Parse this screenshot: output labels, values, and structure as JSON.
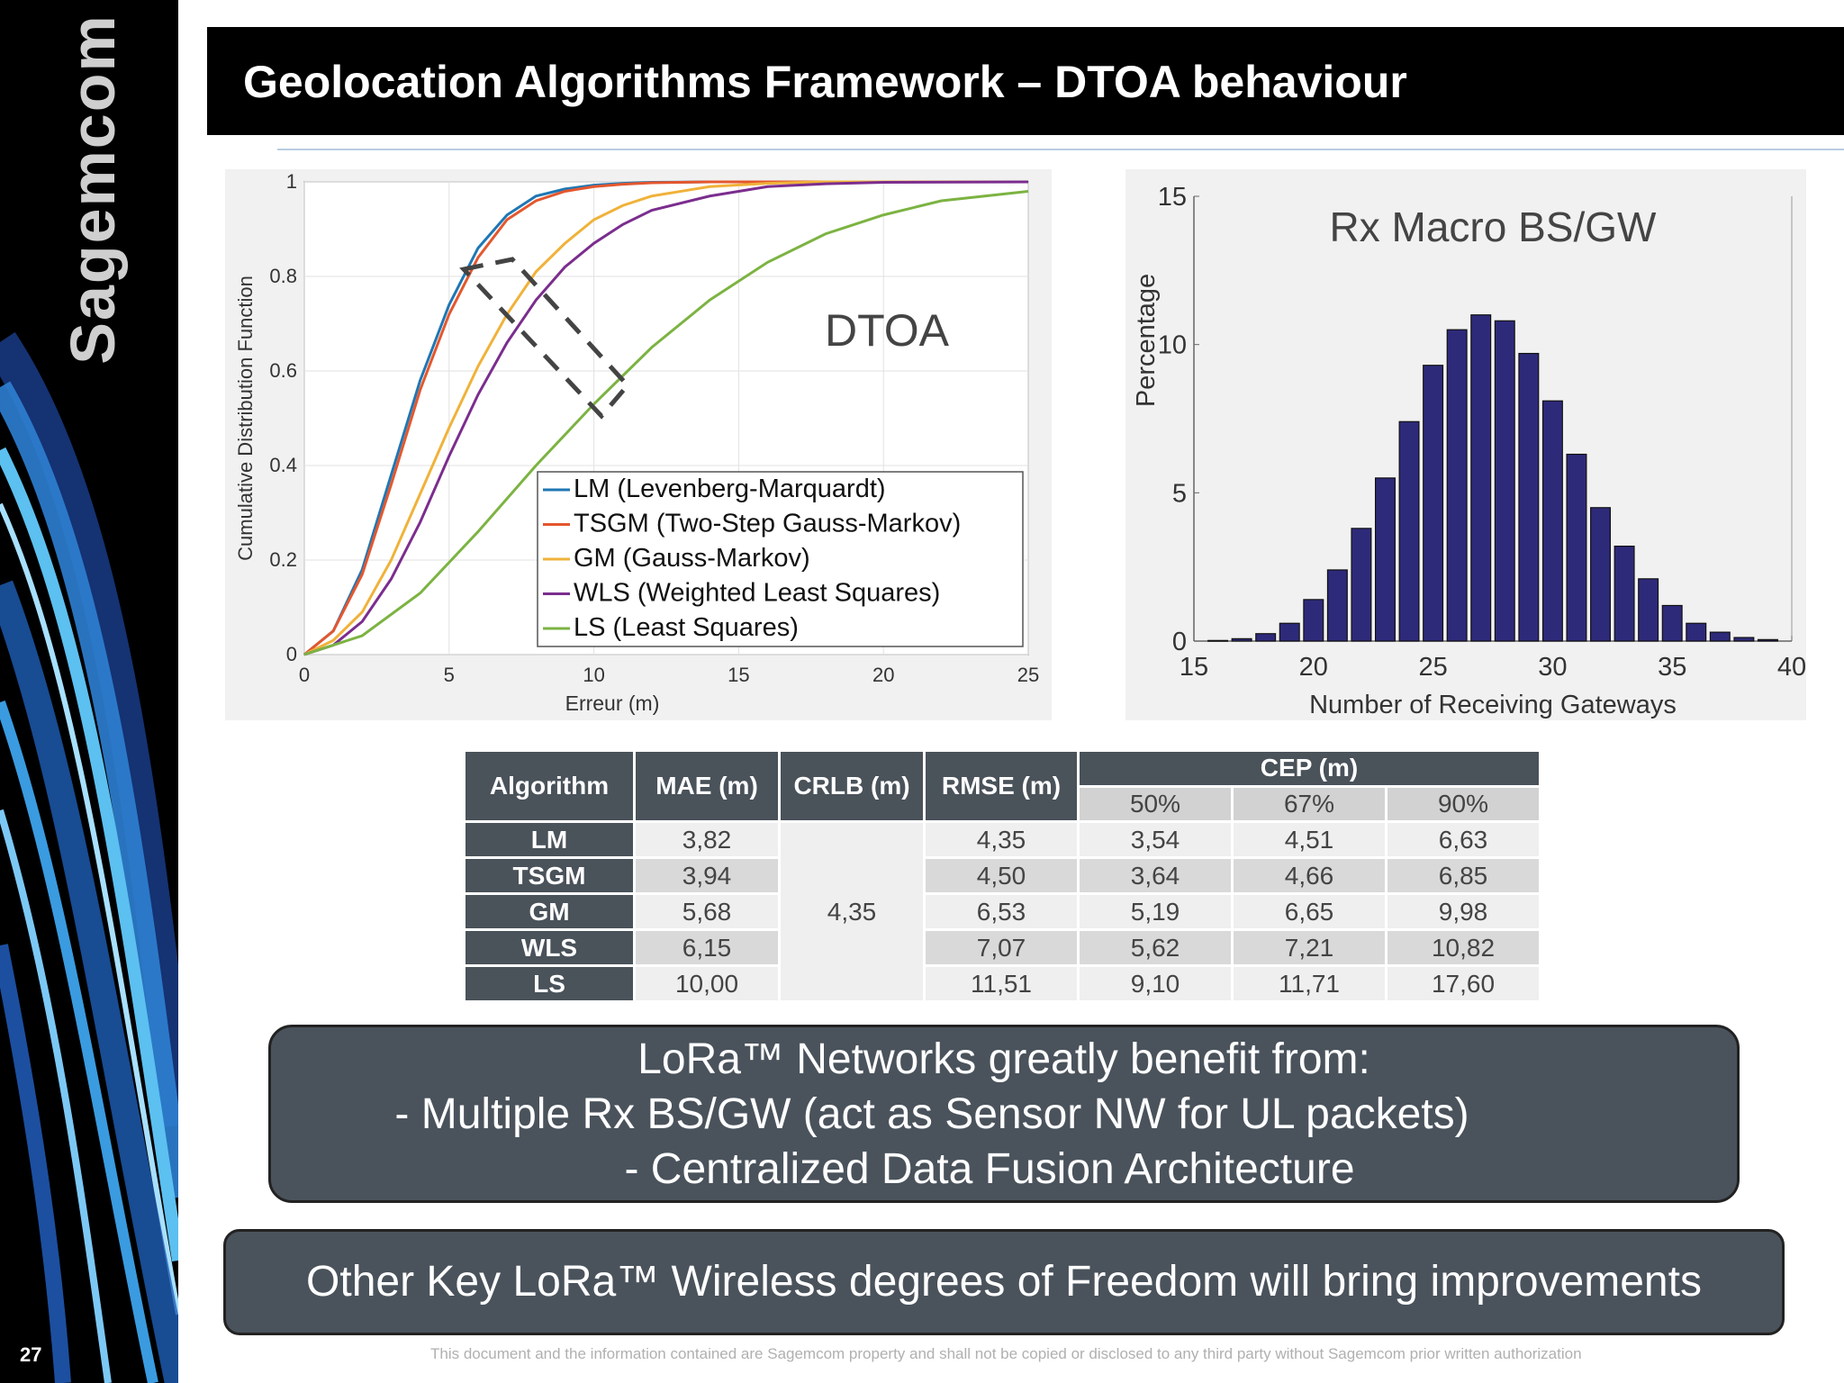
{
  "sidebar": {
    "logo": "Sagemcom",
    "page_number": "27"
  },
  "header": {
    "title": "Geolocation Algorithms Framework – DTOA behaviour"
  },
  "colors": {
    "LM": "#1f77b4",
    "TSGM": "#e4572e",
    "GM": "#f0b23a",
    "WLS": "#7b2d8e",
    "LS": "#7cb342",
    "bar": "#2e2a7a"
  },
  "chart_data": [
    {
      "type": "line",
      "title": "",
      "annotation": "DTOA",
      "xlabel": "Erreur (m)",
      "ylabel": "Cumulative Distribution Function",
      "xlim": [
        0,
        25
      ],
      "ylim": [
        0,
        1
      ],
      "xticks": [
        "0",
        "5",
        "10",
        "15",
        "20",
        "25"
      ],
      "yticks": [
        "0",
        "0.2",
        "0.4",
        "0.6",
        "0.8",
        "1"
      ],
      "grid": true,
      "legend_position": "bottom-right",
      "series": [
        {
          "name": "LM",
          "legend_label": "LM      (Levenberg-Marquardt)",
          "x": [
            0,
            1,
            2,
            3,
            4,
            5,
            6,
            7,
            8,
            9,
            10,
            11,
            12,
            14,
            16,
            25
          ],
          "y": [
            0,
            0.05,
            0.18,
            0.38,
            0.58,
            0.74,
            0.86,
            0.93,
            0.97,
            0.985,
            0.993,
            0.997,
            0.999,
            1,
            1,
            1
          ]
        },
        {
          "name": "TSGM",
          "legend_label": "TSGM (Two-Step Gauss-Markov)",
          "x": [
            0,
            1,
            2,
            3,
            4,
            5,
            6,
            7,
            8,
            9,
            10,
            11,
            12,
            14,
            16,
            25
          ],
          "y": [
            0,
            0.05,
            0.17,
            0.36,
            0.56,
            0.72,
            0.84,
            0.92,
            0.96,
            0.98,
            0.99,
            0.995,
            0.998,
            1,
            1,
            1
          ]
        },
        {
          "name": "GM",
          "legend_label": "GM      (Gauss-Markov)",
          "x": [
            0,
            1,
            2,
            3,
            4,
            5,
            6,
            7,
            8,
            9,
            10,
            11,
            12,
            14,
            16,
            18,
            20,
            25
          ],
          "y": [
            0,
            0.03,
            0.09,
            0.2,
            0.34,
            0.48,
            0.61,
            0.72,
            0.81,
            0.87,
            0.92,
            0.95,
            0.97,
            0.99,
            0.997,
            1,
            1,
            1
          ]
        },
        {
          "name": "WLS",
          "legend_label": "WLS    (Weighted Least Squares)",
          "x": [
            0,
            1,
            2,
            3,
            4,
            5,
            6,
            7,
            8,
            9,
            10,
            11,
            12,
            14,
            16,
            18,
            20,
            25
          ],
          "y": [
            0,
            0.02,
            0.07,
            0.16,
            0.28,
            0.42,
            0.55,
            0.66,
            0.75,
            0.82,
            0.87,
            0.91,
            0.94,
            0.97,
            0.99,
            0.996,
            0.999,
            1
          ]
        },
        {
          "name": "LS",
          "legend_label": "LS       (Least Squares)",
          "x": [
            0,
            2,
            4,
            6,
            8,
            10,
            11,
            12,
            14,
            16,
            18,
            20,
            22,
            25
          ],
          "y": [
            0,
            0.04,
            0.13,
            0.26,
            0.4,
            0.53,
            0.59,
            0.65,
            0.75,
            0.83,
            0.89,
            0.93,
            0.96,
            0.98
          ]
        }
      ]
    },
    {
      "type": "bar",
      "title": "Rx Macro BS/GW",
      "xlabel": "Number of Receiving Gateways",
      "ylabel": "Percentage",
      "xlim": [
        15,
        40
      ],
      "ylim": [
        0,
        15
      ],
      "xticks": [
        "15",
        "20",
        "25",
        "30",
        "35",
        "40"
      ],
      "yticks": [
        "0",
        "5",
        "10",
        "15"
      ],
      "grid": false,
      "x": [
        16,
        17,
        18,
        19,
        20,
        21,
        22,
        23,
        24,
        25,
        26,
        27,
        28,
        29,
        30,
        31,
        32,
        33,
        34,
        35,
        36,
        37,
        38,
        39
      ],
      "values": [
        0.02,
        0.08,
        0.25,
        0.6,
        1.4,
        2.4,
        3.8,
        5.5,
        7.4,
        9.3,
        10.5,
        11.0,
        10.8,
        9.7,
        8.1,
        6.3,
        4.5,
        3.2,
        2.1,
        1.2,
        0.6,
        0.3,
        0.12,
        0.05
      ]
    }
  ],
  "table": {
    "headers": {
      "algorithm": "Algorithm",
      "mae": "MAE (m)",
      "crlb": "CRLB (m)",
      "rmse": "RMSE (m)",
      "cep": "CEP (m)"
    },
    "cep_subheaders": [
      "50%",
      "67%",
      "90%"
    ],
    "crlb_value": "4,35",
    "rows": [
      {
        "alg": "LM",
        "mae": "3,82",
        "rmse": "4,35",
        "cep50": "3,54",
        "cep67": "4,51",
        "cep90": "6,63"
      },
      {
        "alg": "TSGM",
        "mae": "3,94",
        "rmse": "4,50",
        "cep50": "3,64",
        "cep67": "4,66",
        "cep90": "6,85"
      },
      {
        "alg": "GM",
        "mae": "5,68",
        "rmse": "6,53",
        "cep50": "5,19",
        "cep67": "6,65",
        "cep90": "9,98"
      },
      {
        "alg": "WLS",
        "mae": "6,15",
        "rmse": "7,07",
        "cep50": "5,62",
        "cep67": "7,21",
        "cep90": "10,82"
      },
      {
        "alg": "LS",
        "mae": "10,00",
        "rmse": "11,51",
        "cep50": "9,10",
        "cep67": "11,71",
        "cep90": "17,60"
      }
    ]
  },
  "callouts": {
    "box1_line1": "LoRa™ Networks greatly benefit from:",
    "box1_line2": "-    Multiple Rx BS/GW (act as Sensor NW for UL packets)",
    "box1_line3": "-    Centralized Data Fusion Architecture",
    "box2": "Other Key LoRa™ Wireless degrees of Freedom will bring improvements"
  },
  "footer": "This document and the information contained are Sagemcom property and shall not be copied or disclosed to any third party without Sagemcom prior written authorization"
}
